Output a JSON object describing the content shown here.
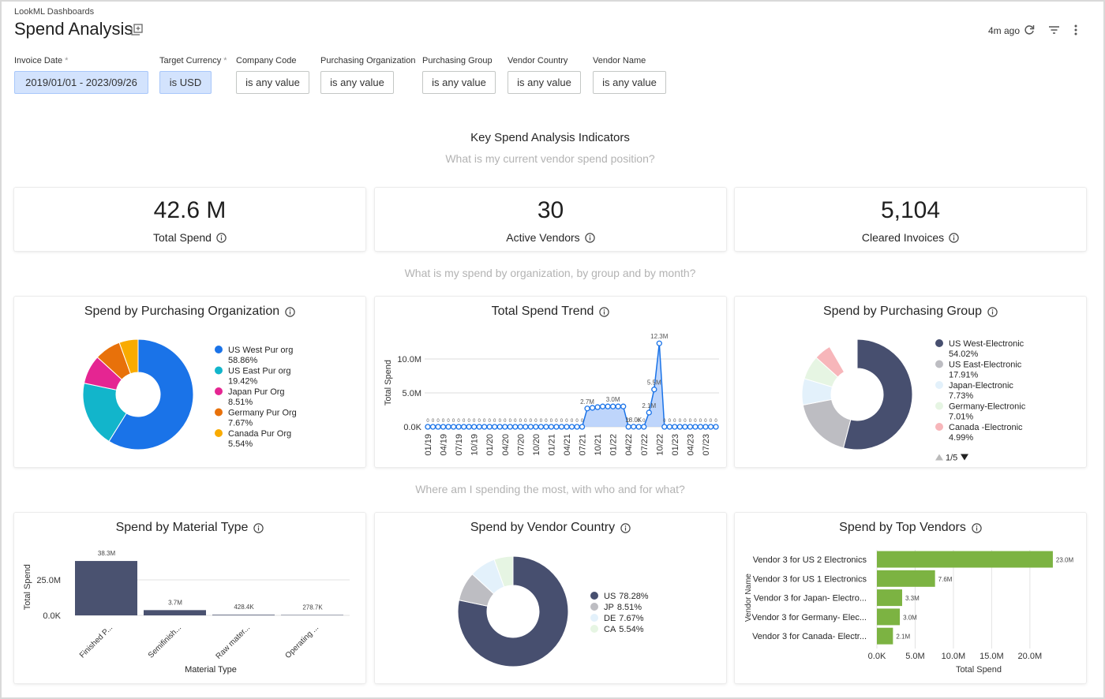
{
  "header": {
    "breadcrumb": "LookML Dashboards",
    "title": "Spend Analysis",
    "updated": "4m ago"
  },
  "filters": [
    {
      "label": "Invoice Date",
      "marker": "*",
      "value": "2019/01/01 - 2023/09/26",
      "active": true
    },
    {
      "label": "Target Currency",
      "marker": "*",
      "value": "is USD",
      "active": true
    },
    {
      "label": "Company Code",
      "value": "is any value",
      "active": false
    },
    {
      "label": "Purchasing Organization",
      "value": "is any value",
      "active": false
    },
    {
      "label": "Purchasing Group",
      "value": "is any value",
      "active": false
    },
    {
      "label": "Vendor Country",
      "value": "is any value",
      "active": false
    },
    {
      "label": "Vendor Name",
      "value": "is any value",
      "active": false
    }
  ],
  "sections": [
    "Key Spend Analysis Indicators",
    "What is my current vendor spend position?",
    "What is my spend by organization, by group and by month?",
    "Where am I spending the most, with who and for what?"
  ],
  "kpis": [
    {
      "value": "42.6 M",
      "label": "Total Spend"
    },
    {
      "value": "30",
      "label": "Active Vendors"
    },
    {
      "value": "5,104",
      "label": "Cleared Invoices"
    }
  ],
  "chart_data": [
    {
      "type": "donut",
      "title": "Spend by Purchasing Organization",
      "categories": [
        "US West Pur org",
        "US East Pur org",
        "Japan Pur Org",
        "Germany Pur Org",
        "Canada Pur Org"
      ],
      "values": [
        58.86,
        19.42,
        8.51,
        7.67,
        5.54
      ],
      "value_labels": [
        "58.86%",
        "19.42%",
        "8.51%",
        "7.67%",
        "5.54%"
      ],
      "colors": [
        "#1a73e8",
        "#12b5cb",
        "#e52592",
        "#e8710a",
        "#f9ab00"
      ]
    },
    {
      "type": "line",
      "title": "Total Spend Trend",
      "ylabel": "Total Spend",
      "color": "#1a73e8",
      "grid": true,
      "categories": [
        "01/19",
        null,
        null,
        "04/19",
        null,
        null,
        "07/19",
        null,
        null,
        "10/19",
        null,
        null,
        "01/20",
        null,
        null,
        "04/20",
        null,
        null,
        "07/20",
        null,
        null,
        "10/20",
        null,
        null,
        "01/21",
        null,
        null,
        "04/21",
        null,
        null,
        "07/21",
        null,
        null,
        "10/21",
        null,
        null,
        "01/22",
        null,
        null,
        "04/22",
        null,
        null,
        "07/22",
        null,
        null,
        "10/22",
        null,
        null,
        "01/23",
        null,
        null,
        "04/23",
        null,
        null,
        "07/23",
        null,
        null
      ],
      "values": [
        0,
        0,
        0,
        0,
        0,
        0,
        0,
        0,
        0,
        0,
        0,
        0,
        0,
        0,
        0,
        0,
        0,
        0,
        0,
        0,
        0,
        0,
        0,
        0,
        0,
        0,
        0,
        0,
        0,
        0,
        0,
        2700000,
        2800000,
        2900000,
        3000000,
        3000000,
        3000000,
        3000000,
        3000000,
        0,
        18000,
        0,
        0,
        2100000,
        5500000,
        12300000,
        0,
        0,
        0,
        0,
        0,
        0,
        0,
        0,
        0,
        0,
        0
      ],
      "value_labels": [
        "0",
        "0",
        "0",
        "0",
        "0",
        "0",
        "0",
        "0",
        "0",
        "0",
        "0",
        "0",
        "0",
        "0",
        "0",
        "0",
        "0",
        "0",
        "0",
        "0",
        "0",
        "0",
        "0",
        "0",
        "0",
        "0",
        "0",
        "0",
        "0",
        "0",
        "0",
        "2.7M",
        null,
        null,
        null,
        null,
        "3.0M",
        null,
        null,
        "0",
        "18.0K",
        "0",
        "0",
        "2.1M",
        "5.5M",
        "12.3M",
        "0",
        "0",
        "0",
        "0",
        "0",
        "0",
        "0",
        "0",
        "0",
        "0",
        "0"
      ],
      "ylim": [
        0,
        13000000
      ],
      "yticks": [
        {
          "value": 0,
          "label": "0.0K"
        },
        {
          "value": 5000000,
          "label": "5.0M"
        },
        {
          "value": 10000000,
          "label": "10.0M"
        }
      ]
    },
    {
      "type": "donut",
      "title": "Spend by Purchasing Group",
      "categories": [
        "US West-Electronic",
        "US East-Electronic",
        "Japan-Electronic",
        "Germany-Electronic",
        "Canada -Electronic"
      ],
      "values": [
        54.02,
        17.91,
        7.73,
        7.01,
        4.99
      ],
      "value_labels": [
        "54.02%",
        "17.91%",
        "7.73%",
        "7.01%",
        "4.99%"
      ],
      "colors": [
        "#474f6f",
        "#bdbdc2",
        "#e3f1fb",
        "#e6f5e3",
        "#f7b6ba"
      ],
      "legend_page": "1/5"
    },
    {
      "type": "bar",
      "title": "Spend by Material Type",
      "xlabel": "Material Type",
      "ylabel": "Total Spend",
      "color": "#4a5270",
      "grid": true,
      "categories": [
        "Finished P...",
        "Semifinish...",
        "Raw mater...",
        "Operating ..."
      ],
      "values": [
        38300000,
        3700000,
        428400,
        278700
      ],
      "value_labels": [
        "38.3M",
        "3.7M",
        "428.4K",
        "278.7K"
      ],
      "ylim": [
        0,
        42000000
      ],
      "yticks": [
        {
          "value": 0,
          "label": "0.0K"
        },
        {
          "value": 25000000,
          "label": "25.0M"
        }
      ]
    },
    {
      "type": "donut",
      "title": "Spend by Vendor Country",
      "categories": [
        "US",
        "JP",
        "DE",
        "CA"
      ],
      "values": [
        78.28,
        8.51,
        7.67,
        5.54
      ],
      "value_labels": [
        "78.28%",
        "8.51%",
        "7.67%",
        "5.54%"
      ],
      "colors": [
        "#474f6f",
        "#bdbdc2",
        "#e3f1fb",
        "#e6f5e3"
      ]
    },
    {
      "type": "bar",
      "orientation": "horizontal",
      "title": "Spend by Top Vendors",
      "xlabel": "Total Spend",
      "ylabel": "Vendor Name",
      "color": "#7cb342",
      "grid": true,
      "categories": [
        "Vendor 3 for US 2 Electronics",
        "Vendor 3 for US 1 Electronics",
        "Vendor 3 for Japan- Electro...",
        "Vendor 3 for Germany- Elec...",
        "Vendor 3 for Canada- Electr..."
      ],
      "values": [
        23000000,
        7600000,
        3300000,
        3000000,
        2100000
      ],
      "value_labels": [
        "23.0M",
        "7.6M",
        "3.3M",
        "3.0M",
        "2.1M"
      ],
      "xlim": [
        0,
        26000000
      ],
      "xticks": [
        {
          "value": 0,
          "label": "0.0K"
        },
        {
          "value": 5000000,
          "label": "5.0M"
        },
        {
          "value": 10000000,
          "label": "10.0M"
        },
        {
          "value": 15000000,
          "label": "15.0M"
        },
        {
          "value": 20000000,
          "label": "20.0M"
        }
      ]
    }
  ]
}
